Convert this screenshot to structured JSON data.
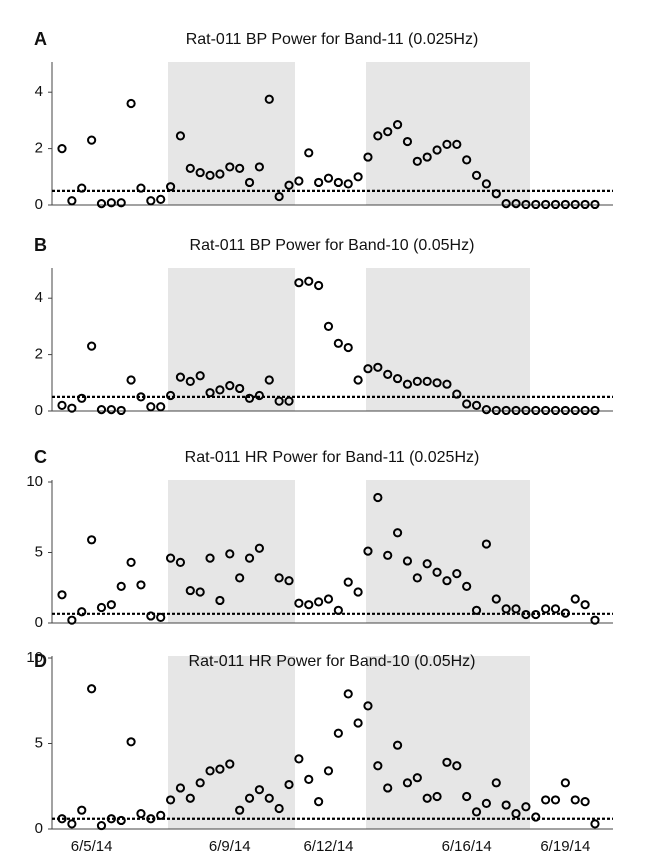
{
  "chart_data": [
    {
      "type": "scatter",
      "panel": "A",
      "title": "Rat-011 BP Power for Band-11 (0.025Hz)",
      "values": [
        2.0,
        0.15,
        0.6,
        2.3,
        0.05,
        0.08,
        0.08,
        3.6,
        0.6,
        0.15,
        0.2,
        0.65,
        2.45,
        1.3,
        1.15,
        1.05,
        1.1,
        1.35,
        1.3,
        0.8,
        1.35,
        3.75,
        0.3,
        0.7,
        0.85,
        1.85,
        0.8,
        0.95,
        0.8,
        0.75,
        1.0,
        1.7,
        2.45,
        2.6,
        2.85,
        2.25,
        1.55,
        1.7,
        1.95,
        2.15,
        2.15,
        1.6,
        1.05,
        0.75,
        0.4,
        0.05,
        0.05,
        0.02,
        0.02,
        0.02,
        0.02,
        0.02,
        0.02,
        0.02,
        0.02
      ],
      "ylim": [
        0,
        5
      ],
      "yticks": [
        0,
        2,
        4
      ],
      "threshold": 0.5
    },
    {
      "type": "scatter",
      "panel": "B",
      "title": "Rat-011 BP Power for Band-10 (0.05Hz)",
      "values": [
        0.2,
        0.1,
        0.45,
        2.3,
        0.05,
        0.05,
        0.02,
        1.1,
        0.5,
        0.15,
        0.15,
        0.55,
        1.2,
        1.05,
        1.25,
        0.65,
        0.75,
        0.9,
        0.8,
        0.45,
        0.55,
        1.1,
        0.35,
        0.35,
        4.55,
        4.6,
        4.45,
        3.0,
        2.4,
        2.25,
        1.1,
        1.5,
        1.55,
        1.3,
        1.15,
        0.95,
        1.05,
        1.05,
        1.0,
        0.95,
        0.6,
        0.25,
        0.2,
        0.05,
        0.02,
        0.02,
        0.02,
        0.02,
        0.02,
        0.02,
        0.02,
        0.02,
        0.02,
        0.02,
        0.02
      ],
      "ylim": [
        0,
        5
      ],
      "yticks": [
        0,
        2,
        4
      ],
      "threshold": 0.5
    },
    {
      "type": "scatter",
      "panel": "C",
      "title": "Rat-011 HR Power for Band-11 (0.025Hz)",
      "values": [
        2.0,
        0.2,
        0.8,
        5.9,
        1.1,
        1.3,
        2.6,
        4.3,
        2.7,
        0.5,
        0.4,
        4.6,
        4.3,
        2.3,
        2.2,
        4.6,
        1.6,
        4.9,
        3.2,
        4.6,
        5.3,
        null,
        3.2,
        3.0,
        1.4,
        1.3,
        1.5,
        1.7,
        0.9,
        2.9,
        2.2,
        5.1,
        8.9,
        4.8,
        6.4,
        4.4,
        3.2,
        4.2,
        3.6,
        3.0,
        3.5,
        2.6,
        0.9,
        5.6,
        1.7,
        1.0,
        1.0,
        0.6,
        0.6,
        1.0,
        1.0,
        0.7,
        1.7,
        1.3,
        0.2
      ],
      "ylim": [
        0,
        10
      ],
      "yticks": [
        0,
        5,
        10
      ],
      "threshold": 0.65
    },
    {
      "type": "scatter",
      "panel": "D",
      "title": "Rat-011 HR Power for Band-10 (0.05Hz)",
      "categories": [
        null,
        null,
        null,
        "6/5/14",
        null,
        null,
        null,
        null,
        null,
        null,
        null,
        null,
        null,
        null,
        null,
        null,
        null,
        "6/9/14",
        null,
        null,
        null,
        null,
        null,
        null,
        null,
        null,
        null,
        "6/12/14",
        null,
        null,
        null,
        null,
        null,
        null,
        null,
        null,
        null,
        null,
        null,
        null,
        null,
        "6/16/14",
        null,
        null,
        null,
        null,
        null,
        null,
        null,
        null,
        null,
        "6/19/14",
        null,
        null,
        null
      ],
      "values": [
        0.6,
        0.3,
        1.1,
        8.2,
        0.2,
        0.6,
        0.5,
        5.1,
        0.9,
        0.6,
        0.8,
        1.7,
        2.4,
        1.8,
        2.7,
        3.4,
        3.5,
        3.8,
        1.1,
        1.8,
        2.3,
        1.8,
        1.2,
        2.6,
        4.1,
        2.9,
        1.6,
        3.4,
        5.6,
        7.9,
        6.2,
        7.2,
        3.7,
        2.4,
        4.9,
        2.7,
        3.0,
        1.8,
        1.9,
        3.9,
        3.7,
        1.9,
        1.0,
        1.5,
        2.7,
        1.4,
        0.9,
        1.3,
        0.7,
        1.7,
        1.7,
        2.7,
        1.7,
        1.6,
        0.3
      ],
      "ylim": [
        0,
        10
      ],
      "yticks": [
        0,
        5,
        10
      ],
      "threshold": 0.6
    }
  ]
}
